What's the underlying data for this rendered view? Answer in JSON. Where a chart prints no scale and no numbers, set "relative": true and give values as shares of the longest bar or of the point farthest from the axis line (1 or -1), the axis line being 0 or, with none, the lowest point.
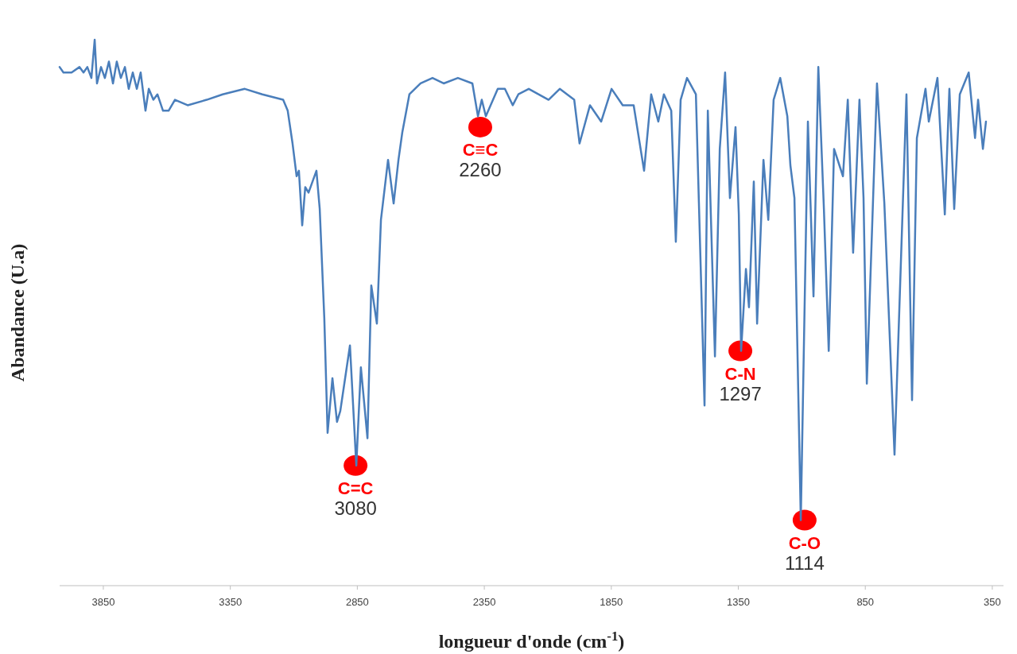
{
  "chart_data": {
    "type": "line",
    "relative": true,
    "xlabel": "longueur d'onde (cm$^{-1}$)",
    "ylabel": "Abandance (U.a)",
    "xlim": [
      4022,
      306
    ],
    "xticks": [
      3850,
      3350,
      2850,
      2350,
      1850,
      1350,
      850,
      350
    ],
    "annotations": [
      {
        "text": "C=C\n3080",
        "x": 2857,
        "y": 0.22
      },
      {
        "text": "C≡C\n2260",
        "x": 2366,
        "y": 0.84
      },
      {
        "text": "C-N\n1297",
        "x": 1342,
        "y": 0.43
      },
      {
        "text": "C-O\n1114",
        "x": 1089,
        "y": 0.12
      }
    ],
    "series": [
      {
        "color": "#4a7ebb",
        "x": [
          4022,
          4007,
          3975,
          3944,
          3928,
          3913,
          3897,
          3884,
          3875,
          3859,
          3844,
          3828,
          3812,
          3797,
          3781,
          3765,
          3750,
          3734,
          3718,
          3703,
          3684,
          3671,
          3653,
          3637,
          3615,
          3593,
          3568,
          3518,
          3443,
          3380,
          3293,
          3224,
          3142,
          3124,
          3105,
          3089,
          3080,
          3067,
          3055,
          3042,
          3011,
          2998,
          2980,
          2967,
          2948,
          2930,
          2917,
          2879,
          2854,
          2836,
          2810,
          2795,
          2773,
          2757,
          2729,
          2707,
          2688,
          2673,
          2645,
          2601,
          2554,
          2510,
          2454,
          2397,
          2375,
          2360,
          2344,
          2297,
          2269,
          2238,
          2216,
          2175,
          2097,
          2053,
          1996,
          1975,
          1934,
          1890,
          1849,
          1805,
          1762,
          1721,
          1693,
          1665,
          1643,
          1614,
          1596,
          1577,
          1552,
          1517,
          1483,
          1470,
          1442,
          1423,
          1402,
          1383,
          1361,
          1348,
          1339,
          1320,
          1308,
          1289,
          1276,
          1251,
          1232,
          1211,
          1185,
          1157,
          1145,
          1129,
          1104,
          1076,
          1054,
          1035,
          1013,
          994,
          973,
          938,
          919,
          898,
          873,
          857,
          844,
          804,
          775,
          735,
          688,
          666,
          647,
          613,
          600,
          566,
          537,
          519,
          500,
          478,
          443,
          418,
          406,
          387,
          375
        ],
        "values": [
          0.95,
          0.94,
          0.94,
          0.95,
          0.94,
          0.95,
          0.93,
          1.0,
          0.92,
          0.95,
          0.93,
          0.96,
          0.92,
          0.96,
          0.93,
          0.95,
          0.91,
          0.94,
          0.91,
          0.94,
          0.87,
          0.91,
          0.89,
          0.9,
          0.87,
          0.87,
          0.89,
          0.88,
          0.89,
          0.9,
          0.91,
          0.9,
          0.89,
          0.87,
          0.81,
          0.75,
          0.76,
          0.66,
          0.73,
          0.72,
          0.76,
          0.69,
          0.49,
          0.28,
          0.38,
          0.3,
          0.32,
          0.44,
          0.22,
          0.4,
          0.27,
          0.55,
          0.48,
          0.67,
          0.78,
          0.7,
          0.78,
          0.83,
          0.9,
          0.92,
          0.93,
          0.92,
          0.93,
          0.92,
          0.86,
          0.89,
          0.86,
          0.91,
          0.91,
          0.88,
          0.9,
          0.91,
          0.89,
          0.91,
          0.89,
          0.81,
          0.88,
          0.85,
          0.91,
          0.88,
          0.88,
          0.76,
          0.9,
          0.85,
          0.9,
          0.87,
          0.63,
          0.89,
          0.93,
          0.9,
          0.33,
          0.87,
          0.42,
          0.8,
          0.94,
          0.71,
          0.84,
          0.68,
          0.43,
          0.58,
          0.51,
          0.74,
          0.48,
          0.78,
          0.67,
          0.89,
          0.93,
          0.86,
          0.77,
          0.71,
          0.12,
          0.85,
          0.53,
          0.95,
          0.69,
          0.43,
          0.8,
          0.75,
          0.89,
          0.61,
          0.89,
          0.71,
          0.37,
          0.92,
          0.7,
          0.24,
          0.9,
          0.34,
          0.82,
          0.91,
          0.85,
          0.93,
          0.68,
          0.91,
          0.69,
          0.9,
          0.94,
          0.82,
          0.89,
          0.8,
          0.85
        ]
      }
    ]
  }
}
